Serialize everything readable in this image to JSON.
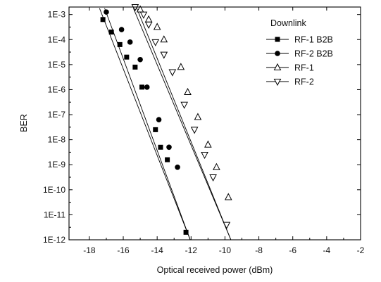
{
  "chart_data": {
    "type": "line",
    "xlabel": "Optical received power (dBm)",
    "ylabel": "BER",
    "x_scale": "linear",
    "y_scale": "log",
    "xlim": [
      -19.2,
      -2
    ],
    "ylim_exponent": [
      -12,
      -2.7
    ],
    "x_ticks": [
      -18,
      -16,
      -14,
      -12,
      -10,
      -8,
      -6,
      -4,
      -2
    ],
    "x_tick_labels": [
      "-18",
      "-16",
      "-14",
      "-12",
      "-10",
      "-8",
      "-6",
      "-4",
      "-2"
    ],
    "y_ticks_exponent": [
      -3,
      -4,
      -5,
      -6,
      -7,
      -8,
      -9,
      -10,
      -11,
      -12
    ],
    "y_tick_labels": [
      "1E-3",
      "1E-4",
      "1E-5",
      "1E-6",
      "1E-7",
      "1E-8",
      "1E-9",
      "1E-10",
      "1E-11",
      "1E-12"
    ],
    "legend": {
      "title": "Downlink",
      "position": "top-right"
    },
    "series": [
      {
        "name": "RF-1 B2B",
        "marker": "filled-square",
        "color": "#000000",
        "x": [
          -17.2,
          -16.7,
          -16.2,
          -15.8,
          -15.3,
          -14.9,
          -14.1,
          -13.8,
          -13.4,
          -12.3
        ],
        "y_exponent": [
          -3.2,
          -3.7,
          -4.2,
          -4.7,
          -5.1,
          -5.9,
          -7.6,
          -8.3,
          -8.8,
          -11.7
        ],
        "fit_x": [
          -17.4,
          -12.05
        ],
        "fit_y_exponent": [
          -2.75,
          -12.0
        ]
      },
      {
        "name": "RF-2 B2B",
        "marker": "filled-circle",
        "color": "#000000",
        "x": [
          -17.0,
          -16.1,
          -15.6,
          -15.0,
          -14.6,
          -13.9,
          -13.3,
          -12.8
        ],
        "y_exponent": [
          -2.9,
          -3.6,
          -4.1,
          -4.8,
          -5.9,
          -7.2,
          -8.3,
          -9.1
        ],
        "fit_x": [
          -17.1,
          -12.05
        ],
        "fit_y_exponent": [
          -2.75,
          -12.0
        ]
      },
      {
        "name": "RF-1",
        "marker": "open-triangle-up",
        "color": "#000000",
        "x": [
          -15.0,
          -14.5,
          -14.0,
          -13.6,
          -12.6,
          -12.2,
          -11.6,
          -11.0,
          -10.5,
          -9.8
        ],
        "y_exponent": [
          -2.8,
          -3.2,
          -3.5,
          -4.0,
          -5.1,
          -6.1,
          -7.1,
          -8.2,
          -9.1,
          -10.3
        ],
        "fit_x": [
          -15.2,
          -9.65
        ],
        "fit_y_exponent": [
          -2.75,
          -12.0
        ]
      },
      {
        "name": "RF-2",
        "marker": "open-triangle-down",
        "color": "#000000",
        "x": [
          -15.3,
          -14.8,
          -14.5,
          -14.1,
          -13.6,
          -13.1,
          -12.4,
          -11.8,
          -11.2,
          -10.7,
          -9.9
        ],
        "y_exponent": [
          -2.7,
          -3.0,
          -3.4,
          -4.1,
          -4.6,
          -5.3,
          -6.6,
          -7.6,
          -8.6,
          -9.5,
          -11.4
        ],
        "fit_x": [
          -15.4,
          -9.65
        ],
        "fit_y_exponent": [
          -2.75,
          -12.0
        ]
      }
    ]
  }
}
